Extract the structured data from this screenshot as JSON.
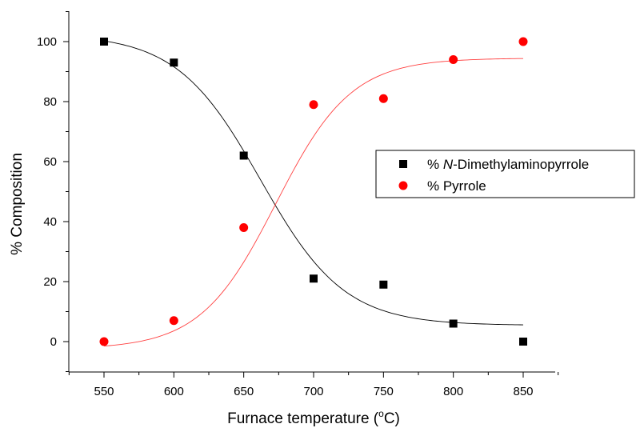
{
  "chart_data": {
    "type": "scatter",
    "xlabel_main": "Furnace temperature (",
    "xlabel_degree": "o",
    "xlabel_unit": "C)",
    "ylabel": "% Composition",
    "xlim": [
      525,
      875
    ],
    "ylim": [
      -10,
      110
    ],
    "x_ticks": [
      550,
      600,
      650,
      700,
      750,
      800,
      850
    ],
    "y_ticks": [
      0,
      20,
      40,
      60,
      80,
      100
    ],
    "legend_position": "right",
    "series": [
      {
        "name_prefix": "% ",
        "name_italic": "N",
        "name_suffix": "-Dimethylaminopyrrole",
        "marker": "square",
        "color": "#000000",
        "fit_color": "#000000",
        "x": [
          550,
          600,
          650,
          700,
          750,
          800,
          850
        ],
        "y": [
          100,
          93,
          62,
          21,
          19,
          6,
          0
        ],
        "fit": {
          "A1": 102.5,
          "A2": 5.4,
          "x0": 662,
          "dx": 30
        }
      },
      {
        "name_prefix": "% ",
        "name_italic": "",
        "name_suffix": "Pyrrole",
        "marker": "circle",
        "color": "#ff0000",
        "fit_color": "#ff4040",
        "x": [
          550,
          600,
          650,
          700,
          750,
          800,
          850
        ],
        "y": [
          0,
          7,
          38,
          79,
          81,
          94,
          100
        ],
        "fit": {
          "A1": -2.5,
          "A2": 94.5,
          "x0": 673,
          "dx": 27
        }
      }
    ]
  }
}
